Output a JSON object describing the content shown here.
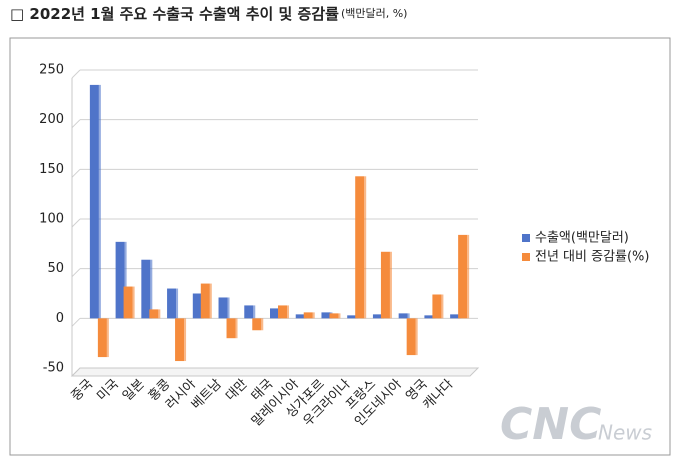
{
  "chart_data": {
    "type": "bar",
    "title": "□ 2022년 1월 주요 수출국 수출액 추이 및 증감률",
    "title_unit": "(백만달러, %)",
    "categories": [
      "중국",
      "미국",
      "일본",
      "홍콩",
      "러시아",
      "베트남",
      "대만",
      "태국",
      "말레이시아",
      "싱가포르",
      "우크라이나",
      "프랑스",
      "인도네시아",
      "영국",
      "캐나다"
    ],
    "series": [
      {
        "name": "수출액(백만달러)",
        "color": "#4f74c9",
        "values": [
          235,
          77,
          59,
          30,
          25,
          21,
          13,
          10,
          4,
          6,
          3,
          4,
          5,
          3,
          4
        ]
      },
      {
        "name": "전년 대비 증감률(%)",
        "color": "#f58b3c",
        "values": [
          -39,
          32,
          9,
          -43,
          35,
          -20,
          -12,
          13,
          6,
          5,
          143,
          67,
          -37,
          24,
          84
        ]
      }
    ],
    "ylim": [
      -50,
      250
    ],
    "yticks": [
      -50,
      0,
      50,
      100,
      150,
      200,
      250
    ],
    "grid": true,
    "legend": "right",
    "watermark": [
      "CNC",
      "News"
    ]
  }
}
